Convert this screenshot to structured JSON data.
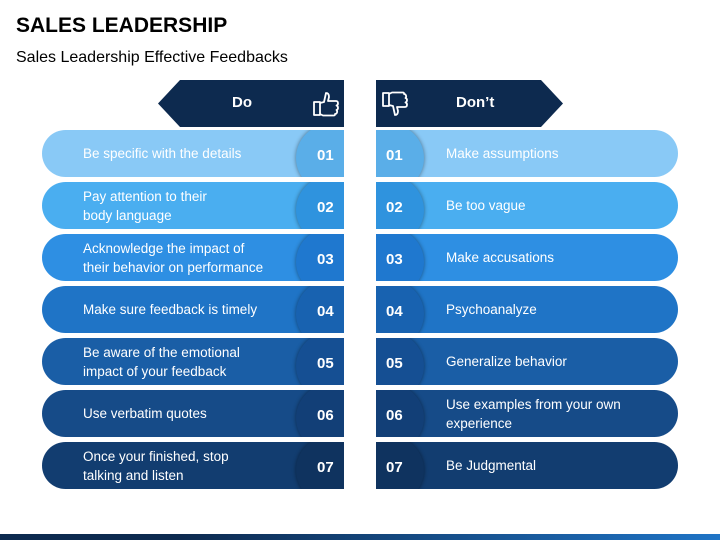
{
  "title": "SALES LEADERSHIP",
  "subtitle": "Sales Leadership Effective Feedbacks",
  "do_column": {
    "header": "Do",
    "icon": "thumbs-up-icon",
    "items": [
      {
        "number": "01",
        "lines": [
          "Be specific with the details"
        ]
      },
      {
        "number": "02",
        "lines": [
          "Pay attention to their",
          "body language"
        ]
      },
      {
        "number": "03",
        "lines": [
          "Acknowledge the impact of",
          "their behavior on performance"
        ]
      },
      {
        "number": "04",
        "lines": [
          "Make sure feedback is timely"
        ]
      },
      {
        "number": "05",
        "lines": [
          "Be aware of the emotional",
          "impact of your feedback"
        ]
      },
      {
        "number": "06",
        "lines": [
          "Use verbatim quotes"
        ]
      },
      {
        "number": "07",
        "lines": [
          "Once your finished, stop",
          "talking and listen"
        ]
      }
    ]
  },
  "dont_column": {
    "header": "Don’t",
    "icon": "thumbs-down-icon",
    "items": [
      {
        "number": "01",
        "lines": [
          "Make assumptions"
        ]
      },
      {
        "number": "02",
        "lines": [
          "Be too vague"
        ]
      },
      {
        "number": "03",
        "lines": [
          "Make accusations"
        ]
      },
      {
        "number": "04",
        "lines": [
          "Psychoanalyze"
        ]
      },
      {
        "number": "05",
        "lines": [
          "Generalize behavior"
        ]
      },
      {
        "number": "06",
        "lines": [
          "Use examples from your own",
          "experience"
        ]
      },
      {
        "number": "07",
        "lines": [
          "Be Judgmental"
        ]
      }
    ]
  },
  "colors": {
    "header": "#0d2a4f",
    "rows": [
      "#89c9f6",
      "#4aaef0",
      "#2e8fe3",
      "#1f74c6",
      "#1a5ea6",
      "#164b88",
      "#123d70"
    ],
    "bubbles": [
      "#5aaee8",
      "#2f93de",
      "#1f78cf",
      "#1862b0",
      "#154f93",
      "#123f77",
      "#0f335f"
    ],
    "footer": [
      "#0d2a4f",
      "#1f74c6"
    ]
  }
}
